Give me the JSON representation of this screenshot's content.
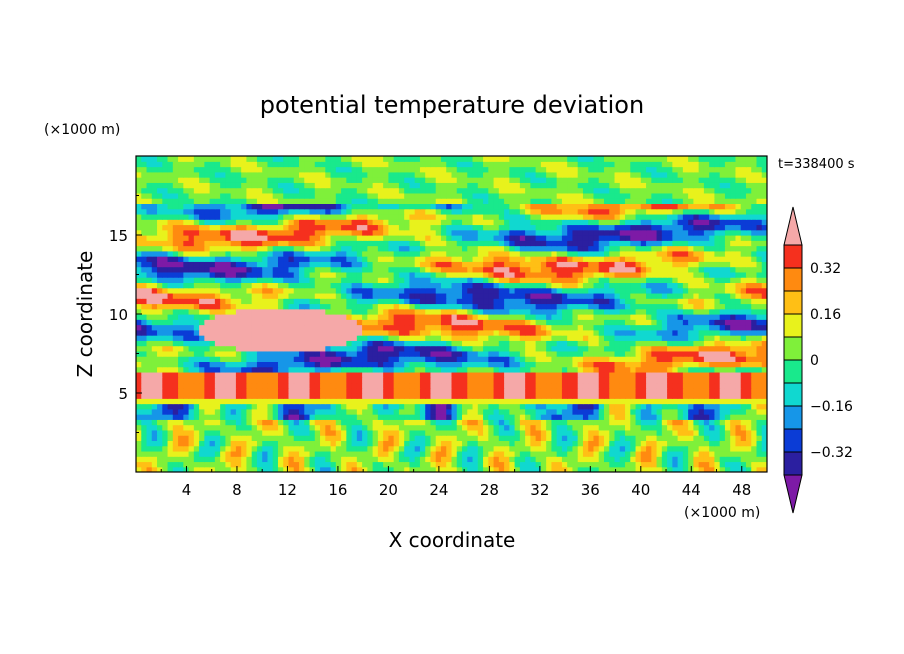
{
  "chart_data": {
    "type": "heatmap",
    "title": "potential temperature deviation",
    "time_label": "t=338400 s",
    "xlabel": "X coordinate",
    "ylabel": "Z coordinate",
    "x_unit": "(×1000 m)",
    "y_unit": "(×1000 m)",
    "xlim": [
      0,
      50
    ],
    "ylim": [
      0,
      20
    ],
    "xticks": [
      "4",
      "8",
      "12",
      "16",
      "20",
      "24",
      "28",
      "32",
      "36",
      "40",
      "44",
      "48"
    ],
    "yticks": [
      "5",
      "10",
      "15"
    ],
    "colorbar": {
      "labels": [
        "0.32",
        "0.16",
        "0",
        "−0.16",
        "−0.32"
      ],
      "levels": [
        -0.4,
        -0.32,
        -0.24,
        -0.16,
        -0.08,
        0,
        0.08,
        0.16,
        0.24,
        0.32,
        0.4
      ],
      "colors": [
        "#7d1aa6",
        "#2b1fa0",
        "#0b3cd6",
        "#1696e8",
        "#10d8d0",
        "#19e98c",
        "#7ff03a",
        "#e8f21c",
        "#ffbf15",
        "#ff8a10",
        "#f5301e",
        "#f5a8a8"
      ]
    },
    "value_range": [
      -0.45,
      0.45
    ]
  }
}
